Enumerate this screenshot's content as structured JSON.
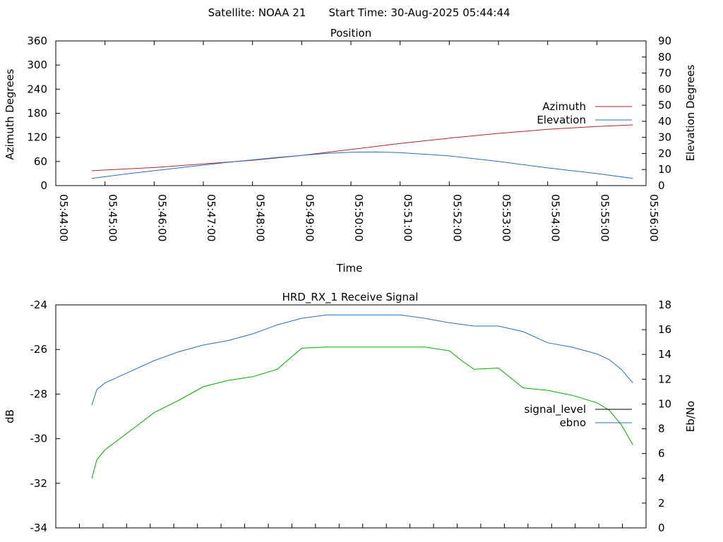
{
  "header": {
    "satellite": "Satellite: NOAA 21",
    "start_time": "Start Time: 30-Aug-2025 05:44:44"
  },
  "chart_data": [
    {
      "type": "line",
      "title": "Position",
      "xlabel": "Time",
      "ylabel": "Azimuth Degrees",
      "y2label": "Elevation Degrees",
      "x_ticks": [
        "05:44:00",
        "05:45:00",
        "05:46:00",
        "05:47:00",
        "05:48:00",
        "05:49:00",
        "05:50:00",
        "05:51:00",
        "05:52:00",
        "05:53:00",
        "05:54:00",
        "05:55:00",
        "05:56:00"
      ],
      "x_range": [
        "05:44:00",
        "05:56:00"
      ],
      "ylim": [
        0,
        360
      ],
      "y_ticks": [
        "0",
        "60",
        "120",
        "180",
        "240",
        "300",
        "360"
      ],
      "y2lim": [
        0,
        90
      ],
      "y2_ticks": [
        "0",
        "10",
        "20",
        "30",
        "40",
        "50",
        "60",
        "70",
        "80",
        "90"
      ],
      "legend_position": "right",
      "series": [
        {
          "name": "Azimuth",
          "axis": "left",
          "color": "#a52a2a",
          "x": [
            "05:44:44",
            "05:46:00",
            "05:47:00",
            "05:48:00",
            "05:49:00",
            "05:50:00",
            "05:51:00",
            "05:52:00",
            "05:53:00",
            "05:54:00",
            "05:55:00",
            "05:55:44"
          ],
          "y": [
            37,
            45,
            54,
            63,
            75,
            90,
            105,
            118,
            130,
            140,
            147,
            151
          ]
        },
        {
          "name": "Elevation",
          "axis": "right",
          "color": "#2a6fb5",
          "x": [
            "05:44:44",
            "05:45:30",
            "05:46:30",
            "05:47:30",
            "05:48:30",
            "05:49:30",
            "05:50:00",
            "05:50:30",
            "05:51:00",
            "05:52:00",
            "05:53:00",
            "05:54:00",
            "05:55:00",
            "05:55:44"
          ],
          "y": [
            4.5,
            7.5,
            11,
            14.5,
            17.5,
            20,
            20.7,
            20.9,
            20.5,
            18.5,
            15,
            11,
            7.5,
            4.5
          ]
        }
      ]
    },
    {
      "type": "line",
      "title": "HRD_RX_1 Receive Signal",
      "ylabel": "dB",
      "y2label": "Eb/No",
      "ylim": [
        -34,
        -24
      ],
      "y_ticks": [
        "-24",
        "-26",
        "-28",
        "-30",
        "-32",
        "-34"
      ],
      "y2lim": [
        0,
        18
      ],
      "y2_ticks": [
        "0",
        "2",
        "4",
        "6",
        "8",
        "10",
        "12",
        "14",
        "16",
        "18"
      ],
      "x_range": [
        "05:44:00",
        "05:56:00"
      ],
      "x_tick_count": 24,
      "legend_position": "right",
      "series": [
        {
          "name": "signal_level",
          "axis": "left",
          "color": "#2a6fb5",
          "x": [
            "05:44:44",
            "05:44:50",
            "05:45:00",
            "05:45:30",
            "05:46:00",
            "05:46:30",
            "05:47:00",
            "05:47:30",
            "05:48:00",
            "05:48:30",
            "05:49:00",
            "05:49:30",
            "05:50:00",
            "05:50:30",
            "05:51:00",
            "05:51:30",
            "05:52:00",
            "05:52:30",
            "05:53:00",
            "05:53:30",
            "05:54:00",
            "05:54:30",
            "05:55:00",
            "05:55:15",
            "05:55:30",
            "05:55:44"
          ],
          "y": [
            -28.5,
            -27.8,
            -27.5,
            -27.0,
            -26.5,
            -26.1,
            -25.8,
            -25.6,
            -25.3,
            -24.9,
            -24.6,
            -24.45,
            -24.45,
            -24.45,
            -24.45,
            -24.6,
            -24.8,
            -24.95,
            -24.95,
            -25.2,
            -25.7,
            -25.9,
            -26.2,
            -26.45,
            -26.9,
            -27.5
          ]
        },
        {
          "name": "ebno",
          "axis": "right",
          "color": "#00aa00",
          "x": [
            "05:44:44",
            "05:44:50",
            "05:45:00",
            "05:45:30",
            "05:46:00",
            "05:46:30",
            "05:47:00",
            "05:47:30",
            "05:48:00",
            "05:48:30",
            "05:49:00",
            "05:49:30",
            "05:50:00",
            "05:50:30",
            "05:51:00",
            "05:51:30",
            "05:52:00",
            "05:52:15",
            "05:52:30",
            "05:53:00",
            "05:53:30",
            "05:54:00",
            "05:54:30",
            "05:55:00",
            "05:55:15",
            "05:55:30",
            "05:55:44"
          ],
          "y": [
            4.0,
            5.5,
            6.3,
            7.8,
            9.3,
            10.3,
            11.4,
            11.9,
            12.2,
            12.8,
            14.5,
            14.6,
            14.6,
            14.6,
            14.6,
            14.6,
            14.3,
            13.5,
            12.8,
            12.9,
            11.3,
            11.1,
            10.7,
            10.1,
            9.5,
            8.3,
            6.7
          ]
        }
      ]
    }
  ]
}
